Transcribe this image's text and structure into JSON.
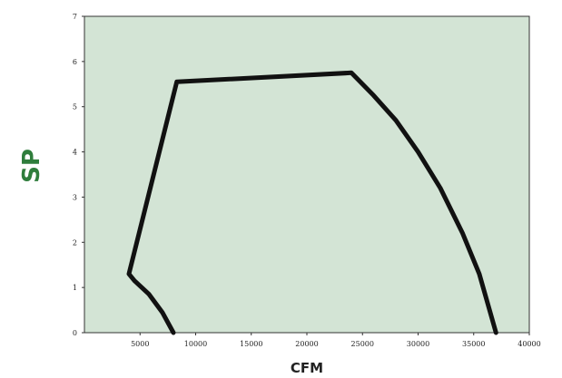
{
  "chart_data": {
    "type": "line",
    "title": "",
    "xlabel": "CFM",
    "ylabel": "SP",
    "xlim": [
      0,
      40000
    ],
    "ylim": [
      0,
      7
    ],
    "x_ticks": [
      5000,
      10000,
      15000,
      20000,
      25000,
      30000,
      35000,
      40000
    ],
    "x_tick_labels": [
      "5000",
      "10000",
      "15000",
      "20000",
      "25000",
      "30000",
      "35000",
      "40000"
    ],
    "y_ticks": [
      0,
      1,
      2,
      3,
      4,
      5,
      6,
      7
    ],
    "y_tick_labels": [
      "0",
      "1",
      "2",
      "3",
      "4",
      "5",
      "6",
      "7"
    ],
    "grid": false,
    "legend": "none",
    "series": [
      {
        "points": [
          [
            8000,
            0
          ],
          [
            7000,
            0.45
          ],
          [
            5800,
            0.85
          ],
          [
            4500,
            1.15
          ],
          [
            4000,
            1.3
          ],
          [
            8300,
            5.55
          ],
          [
            24000,
            5.75
          ],
          [
            26000,
            5.25
          ],
          [
            28000,
            4.7
          ],
          [
            30000,
            4.0
          ],
          [
            32000,
            3.2
          ],
          [
            34000,
            2.2
          ],
          [
            35500,
            1.3
          ],
          [
            37000,
            0
          ]
        ]
      }
    ],
    "colors": {
      "plot_background": "#d3e4d5",
      "line": "#111111",
      "axis_title": "#2f7d3c",
      "frame": "#333333"
    }
  }
}
